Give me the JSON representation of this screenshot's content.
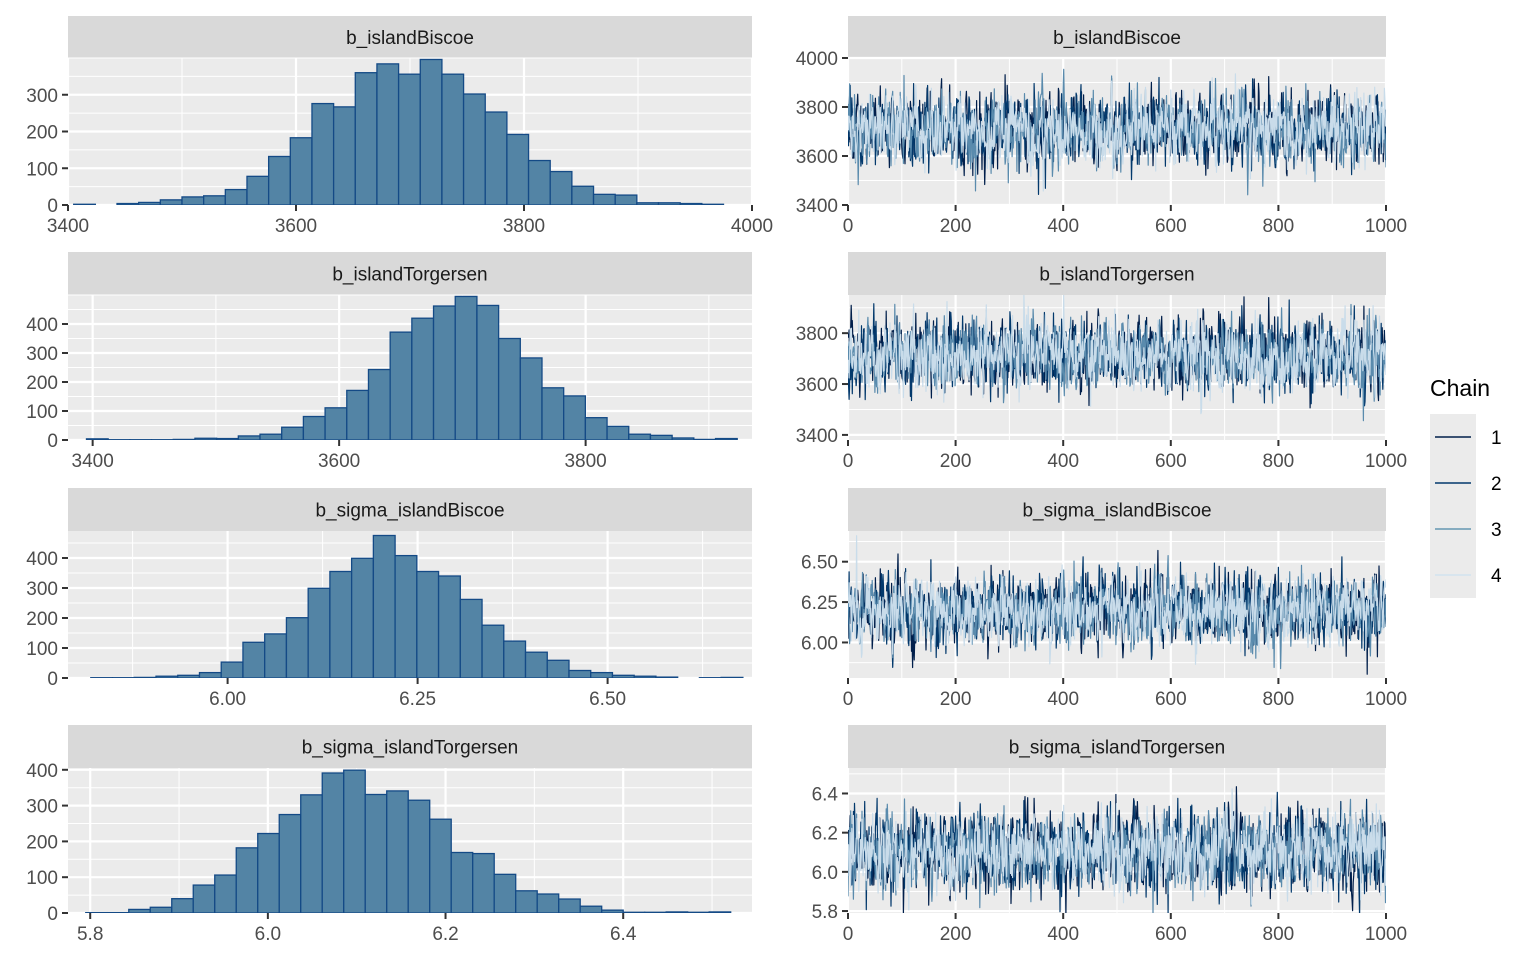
{
  "chart_data": [
    {
      "type": "bar",
      "subtype": "histogram",
      "title": "b_islandBiscoe",
      "xlim": [
        3400,
        4000
      ],
      "ylim": [
        0,
        400
      ],
      "x_ticks": [
        "3400",
        "3600",
        "3800",
        "4000"
      ],
      "x_tick_values": [
        3400,
        3600,
        3800,
        4000
      ],
      "y_ticks": [
        "0",
        "100",
        "200",
        "300"
      ],
      "y_tick_values": [
        0,
        100,
        200,
        300
      ],
      "bin_start": 3405,
      "bin_width": 19,
      "values": [
        2,
        0,
        4,
        7,
        14,
        22,
        25,
        42,
        78,
        132,
        183,
        276,
        267,
        360,
        384,
        356,
        396,
        356,
        302,
        253,
        192,
        121,
        91,
        51,
        29,
        27,
        6,
        6,
        4,
        2
      ],
      "grid": true
    },
    {
      "type": "line",
      "subtype": "trace",
      "title": "b_islandBiscoe",
      "xlim": [
        0,
        1000
      ],
      "ylim": [
        3400,
        4000
      ],
      "x_ticks": [
        "0",
        "200",
        "400",
        "600",
        "800",
        "1000"
      ],
      "x_tick_values": [
        0,
        200,
        400,
        600,
        800,
        1000
      ],
      "y_ticks": [
        "3400",
        "3600",
        "3800",
        "4000"
      ],
      "y_tick_values": [
        3400,
        3600,
        3800,
        4000
      ],
      "center": 3710,
      "spread": 75,
      "grid": true
    },
    {
      "type": "bar",
      "subtype": "histogram",
      "title": "b_islandTorgersen",
      "xlim": [
        3380,
        3935
      ],
      "ylim": [
        0,
        500
      ],
      "x_ticks": [
        "3400",
        "3600",
        "3800"
      ],
      "x_tick_values": [
        3400,
        3600,
        3800
      ],
      "y_ticks": [
        "0",
        "100",
        "200",
        "300",
        "400"
      ],
      "y_tick_values": [
        0,
        100,
        200,
        300,
        400
      ],
      "bin_start": 3395,
      "bin_width": 17.6,
      "values": [
        4,
        1,
        1,
        1,
        2,
        6,
        5,
        14,
        20,
        44,
        81,
        111,
        171,
        243,
        372,
        420,
        462,
        495,
        464,
        350,
        283,
        180,
        152,
        77,
        47,
        20,
        16,
        7,
        2,
        5
      ],
      "grid": true
    },
    {
      "type": "line",
      "subtype": "trace",
      "title": "b_islandTorgersen",
      "xlim": [
        0,
        1000
      ],
      "ylim": [
        3380,
        3950
      ],
      "x_ticks": [
        "0",
        "200",
        "400",
        "600",
        "800",
        "1000"
      ],
      "x_tick_values": [
        0,
        200,
        400,
        600,
        800,
        1000
      ],
      "y_ticks": [
        "3400",
        "3600",
        "3800"
      ],
      "y_tick_values": [
        3400,
        3600,
        3800
      ],
      "center": 3710,
      "spread": 70,
      "grid": true
    },
    {
      "type": "bar",
      "subtype": "histogram",
      "title": "b_sigma_islandBiscoe",
      "xlim": [
        5.79,
        6.69
      ],
      "ylim": [
        0,
        490
      ],
      "x_ticks": [
        "6.00",
        "6.25",
        "6.50"
      ],
      "x_tick_values": [
        6.0,
        6.25,
        6.5
      ],
      "y_ticks": [
        "0",
        "100",
        "200",
        "300",
        "400"
      ],
      "y_tick_values": [
        0,
        100,
        200,
        300,
        400
      ],
      "bin_start": 5.82,
      "bin_width": 0.0286,
      "values": [
        1,
        1,
        2,
        6,
        9,
        18,
        53,
        119,
        147,
        201,
        299,
        355,
        399,
        475,
        408,
        355,
        340,
        262,
        176,
        123,
        86,
        59,
        25,
        18,
        9,
        6,
        3,
        0,
        1,
        2
      ],
      "grid": true
    },
    {
      "type": "line",
      "subtype": "trace",
      "title": "b_sigma_islandBiscoe",
      "xlim": [
        0,
        1000
      ],
      "ylim": [
        5.78,
        6.69
      ],
      "x_ticks": [
        "0",
        "200",
        "400",
        "600",
        "800",
        "1000"
      ],
      "x_tick_values": [
        0,
        200,
        400,
        600,
        800,
        1000
      ],
      "y_ticks": [
        "6.00",
        "6.25",
        "6.50"
      ],
      "y_tick_values": [
        6.0,
        6.25,
        6.5
      ],
      "center": 6.2,
      "spread": 0.11,
      "grid": true
    },
    {
      "type": "bar",
      "subtype": "histogram",
      "title": "b_sigma_islandTorgersen",
      "xlim": [
        5.775,
        6.545
      ],
      "ylim": [
        0,
        405
      ],
      "x_ticks": [
        "5.8",
        "6.0",
        "6.2",
        "6.4"
      ],
      "x_tick_values": [
        5.8,
        6.0,
        6.2,
        6.4
      ],
      "y_ticks": [
        "0",
        "100",
        "200",
        "300",
        "400"
      ],
      "y_tick_values": [
        0,
        100,
        200,
        300,
        400
      ],
      "bin_start": 5.795,
      "bin_width": 0.0242,
      "values": [
        1,
        1,
        10,
        16,
        40,
        78,
        106,
        182,
        222,
        275,
        330,
        391,
        399,
        331,
        341,
        315,
        262,
        169,
        166,
        108,
        62,
        53,
        39,
        19,
        8,
        2,
        2,
        3,
        2,
        3
      ],
      "grid": true
    },
    {
      "type": "line",
      "subtype": "trace",
      "title": "b_sigma_islandTorgersen",
      "xlim": [
        0,
        1000
      ],
      "ylim": [
        5.79,
        6.53
      ],
      "x_ticks": [
        "0",
        "200",
        "400",
        "600",
        "800",
        "1000"
      ],
      "x_tick_values": [
        0,
        200,
        400,
        600,
        800,
        1000
      ],
      "y_ticks": [
        "5.8",
        "6.0",
        "6.2",
        "6.4"
      ],
      "y_tick_values": [
        5.8,
        6.0,
        6.2,
        6.4
      ],
      "center": 6.11,
      "spread": 0.1,
      "grid": true
    }
  ],
  "legend": {
    "title": "Chain",
    "placement": "right",
    "items": [
      {
        "label": "1",
        "color": "#011f4b"
      },
      {
        "label": "2",
        "color": "#03396c"
      },
      {
        "label": "3",
        "color": "#6497b1"
      },
      {
        "label": "4",
        "color": "#d1e3f0"
      }
    ]
  },
  "colors": {
    "hist_fill": "#5384a5",
    "hist_stroke": "#144a86",
    "panel_bg": "#ebebeb",
    "strip_bg": "#d9d9d9",
    "chain_colors": [
      "#011f4b",
      "#03396c",
      "#5a8bad",
      "#c9dcea"
    ]
  }
}
